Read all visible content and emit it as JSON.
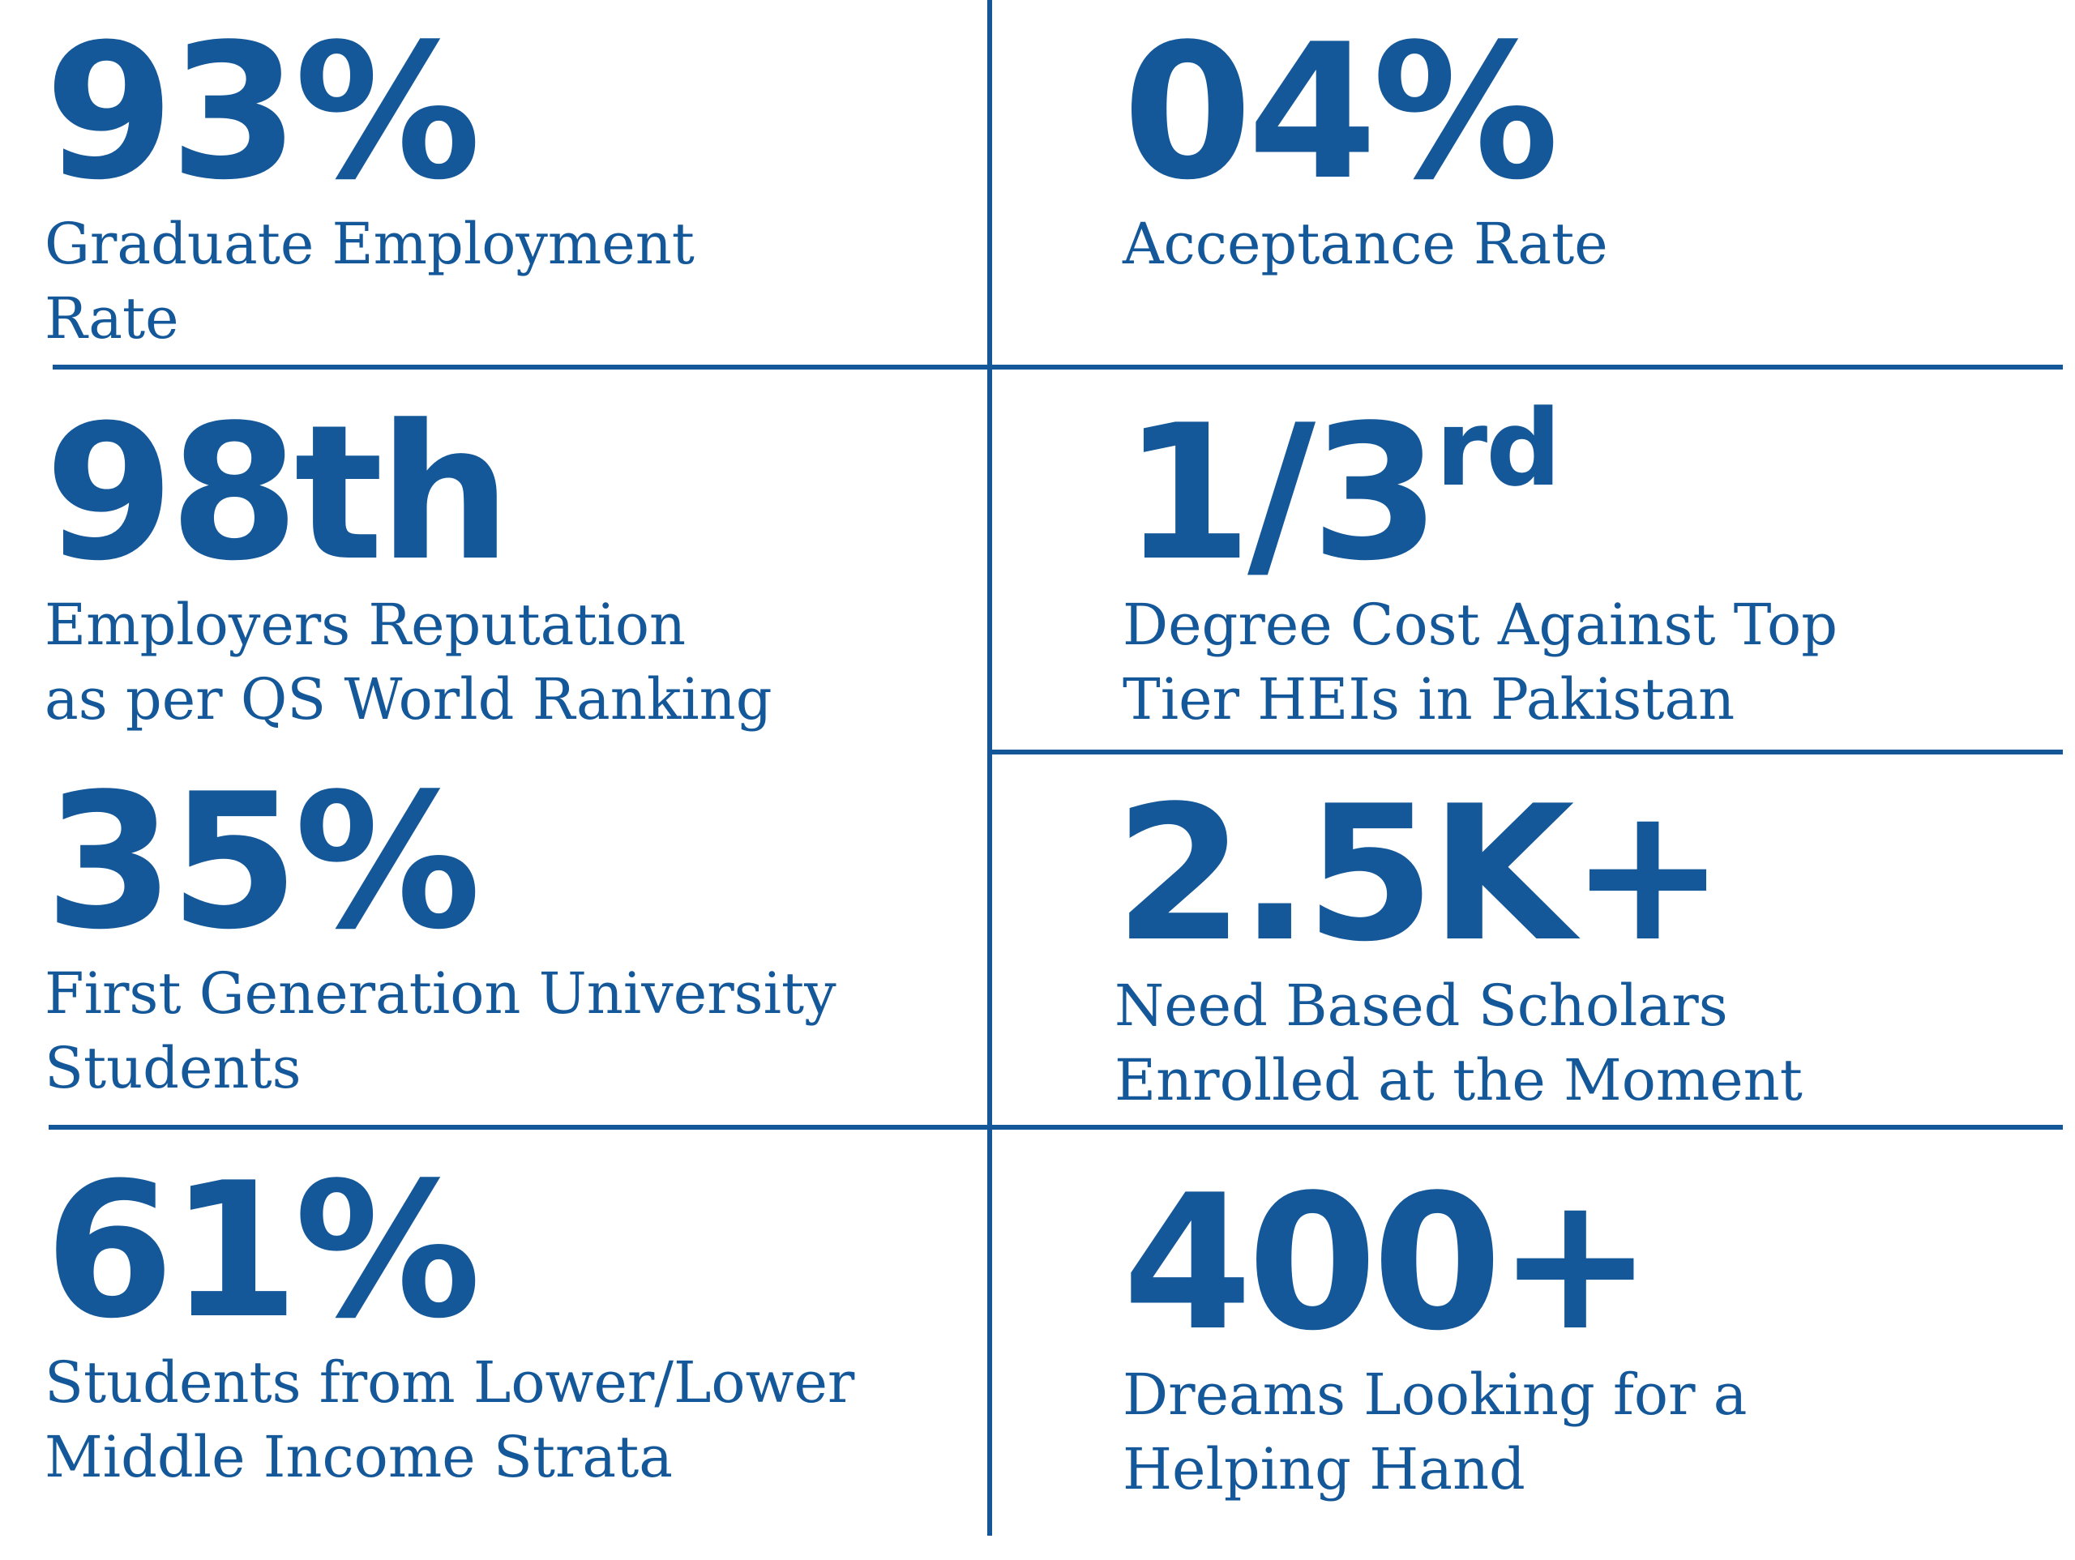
{
  "colors": {
    "accent": "#14589a",
    "background": "#ffffff"
  },
  "stats": [
    {
      "value": "93%",
      "label_lines": [
        "Graduate Employment",
        "Rate"
      ]
    },
    {
      "value": "04%",
      "label_lines": [
        "Acceptance Rate"
      ]
    },
    {
      "value": "98th",
      "label_lines": [
        "Employers Reputation",
        "as per QS World Ranking"
      ]
    },
    {
      "value": "1/3",
      "suffix": "rd",
      "label_lines": [
        "Degree Cost Against Top",
        "Tier HEIs in Pakistan"
      ]
    },
    {
      "value": "35%",
      "label_lines": [
        "First Generation University",
        "Students"
      ]
    },
    {
      "value": "2.5K+",
      "label_lines": [
        "Need Based Scholars",
        "Enrolled at the Moment"
      ]
    },
    {
      "value": "61%",
      "label_lines": [
        "Students from Lower/Lower",
        "Middle Income Strata"
      ]
    },
    {
      "value": "400+",
      "label_lines": [
        "Dreams Looking for a",
        "Helping Hand"
      ]
    }
  ]
}
